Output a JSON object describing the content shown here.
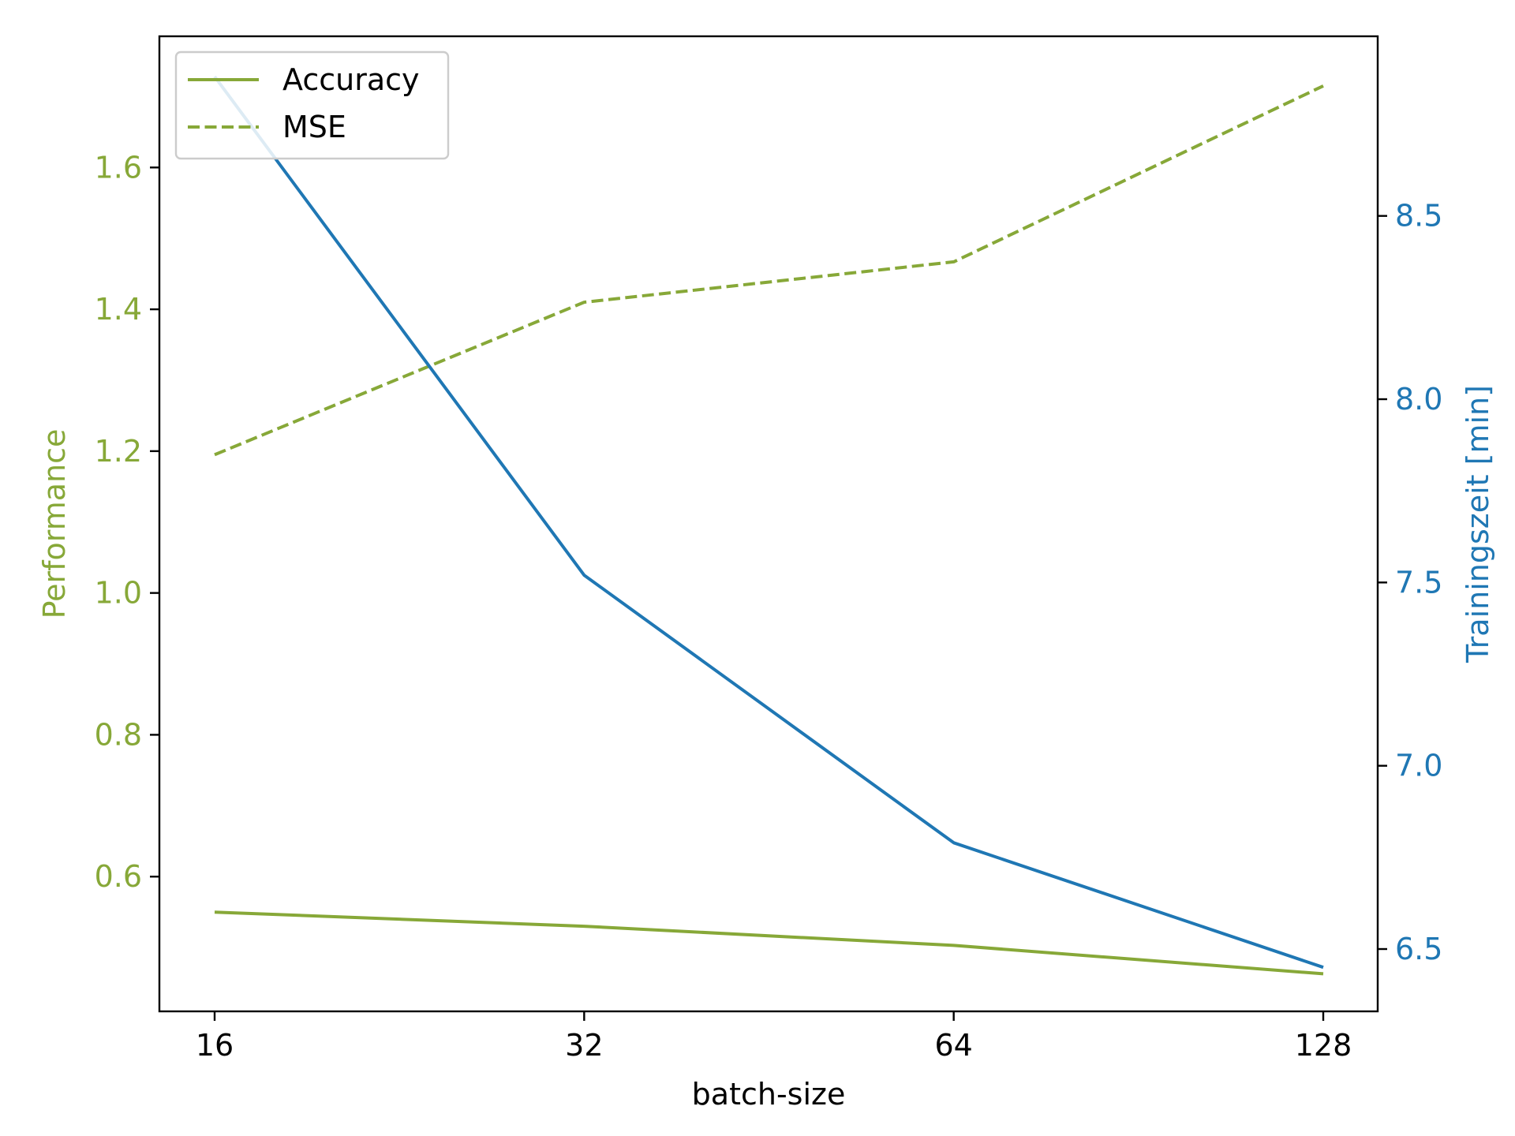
{
  "colors": {
    "performance": "#87a838",
    "training_time": "#1f77b4",
    "axis": "#000000",
    "background": "#ffffff"
  },
  "chart_data": {
    "type": "line",
    "title": "",
    "xlabel": "batch-size",
    "ylabel_left": "Performance",
    "ylabel_right": "Trainingszeit [min]",
    "x_scale": "log2",
    "x": [
      16,
      32,
      64,
      128
    ],
    "x_tick_labels": [
      "16",
      "32",
      "64",
      "128"
    ],
    "ylim_left": [
      0.41,
      1.785
    ],
    "yticks_left": [
      "0.6",
      "0.8",
      "1.0",
      "1.2",
      "1.4",
      "1.6"
    ],
    "ylim_right": [
      6.33,
      8.99
    ],
    "yticks_right": [
      "6.5",
      "7.0",
      "7.5",
      "8.0",
      "8.5"
    ],
    "legend_position": "upper-left",
    "series": [
      {
        "name": "Accuracy",
        "axis": "left",
        "style": "solid",
        "color": "#87a838",
        "values": [
          0.55,
          0.53,
          0.503,
          0.463
        ]
      },
      {
        "name": "MSE",
        "axis": "left",
        "style": "dashed",
        "color": "#87a838",
        "values": [
          1.195,
          1.41,
          1.467,
          1.715
        ]
      },
      {
        "axis": "right",
        "style": "solid",
        "color": "#1f77b4",
        "values": [
          8.88,
          7.52,
          6.79,
          6.45
        ]
      }
    ],
    "grid": false
  }
}
